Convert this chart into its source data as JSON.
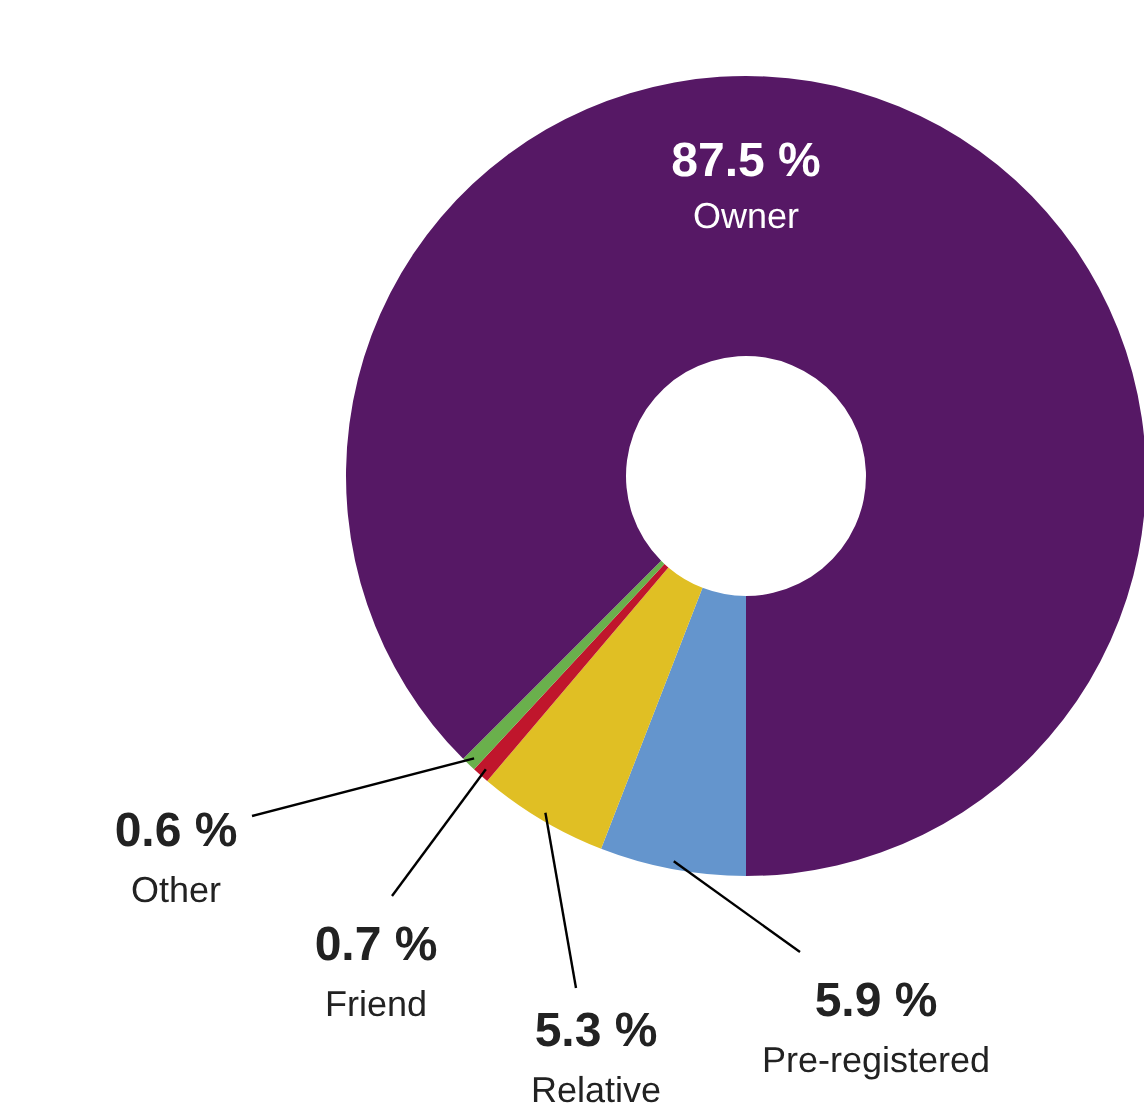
{
  "chart_data": {
    "type": "donut",
    "categories": [
      "Pre-registered",
      "Relative",
      "Friend",
      "Other",
      "Owner"
    ],
    "values": [
      5.9,
      5.3,
      0.7,
      0.6,
      87.5
    ],
    "colors": [
      "#6495cd",
      "#e0bf24",
      "#c0162c",
      "#6ab04c",
      "#561865"
    ],
    "value_labels": [
      "5.9 %",
      "5.3 %",
      "0.7 %",
      "0.6 %",
      "87.5 %"
    ],
    "legend": false
  }
}
